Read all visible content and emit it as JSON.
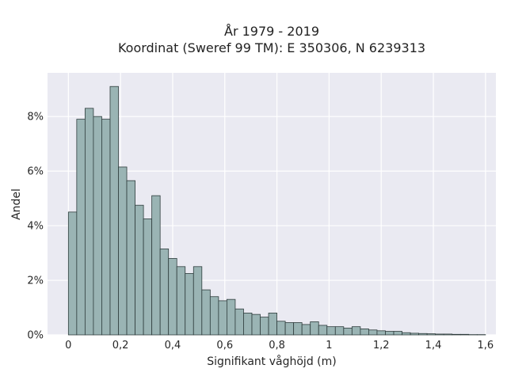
{
  "chart_data": {
    "type": "bar",
    "title": "År 1979 - 2019",
    "subtitle": "Koordinat (Sweref 99 TM): E 350306, N 6239313",
    "xlabel": "Signifikant våghöjd (m)",
    "ylabel": "Andel",
    "xlim": [
      -0.08,
      1.64
    ],
    "ylim": [
      0,
      9.6
    ],
    "x_ticks": [
      0,
      0.2,
      0.4,
      0.6,
      0.8,
      1,
      1.2,
      1.4,
      1.6
    ],
    "x_tick_labels": [
      "0",
      "0,2",
      "0,4",
      "0,6",
      "0,8",
      "1",
      "1,2",
      "1,4",
      "1,6"
    ],
    "y_ticks": [
      0,
      2,
      4,
      6,
      8
    ],
    "y_tick_labels": [
      "0%",
      "2%",
      "4%",
      "6%",
      "8%"
    ],
    "grid": true,
    "bin_start": 0,
    "bin_width": 0.032,
    "values": [
      4.5,
      7.9,
      8.3,
      8.0,
      7.9,
      9.1,
      6.15,
      5.65,
      4.75,
      4.25,
      5.1,
      3.15,
      2.8,
      2.5,
      2.25,
      2.5,
      1.65,
      1.4,
      1.25,
      1.3,
      0.95,
      0.8,
      0.75,
      0.65,
      0.8,
      0.5,
      0.45,
      0.45,
      0.38,
      0.48,
      0.35,
      0.3,
      0.3,
      0.25,
      0.3,
      0.22,
      0.18,
      0.15,
      0.13,
      0.13,
      0.08,
      0.06,
      0.05,
      0.04,
      0.03,
      0.03,
      0.02,
      0.02,
      0.01,
      0.01
    ],
    "colors": {
      "background": "#eaeaf2",
      "bar_fill": "#9ab4b4",
      "bar_edge": "#2f3d3d",
      "grid": "#ffffff"
    }
  }
}
